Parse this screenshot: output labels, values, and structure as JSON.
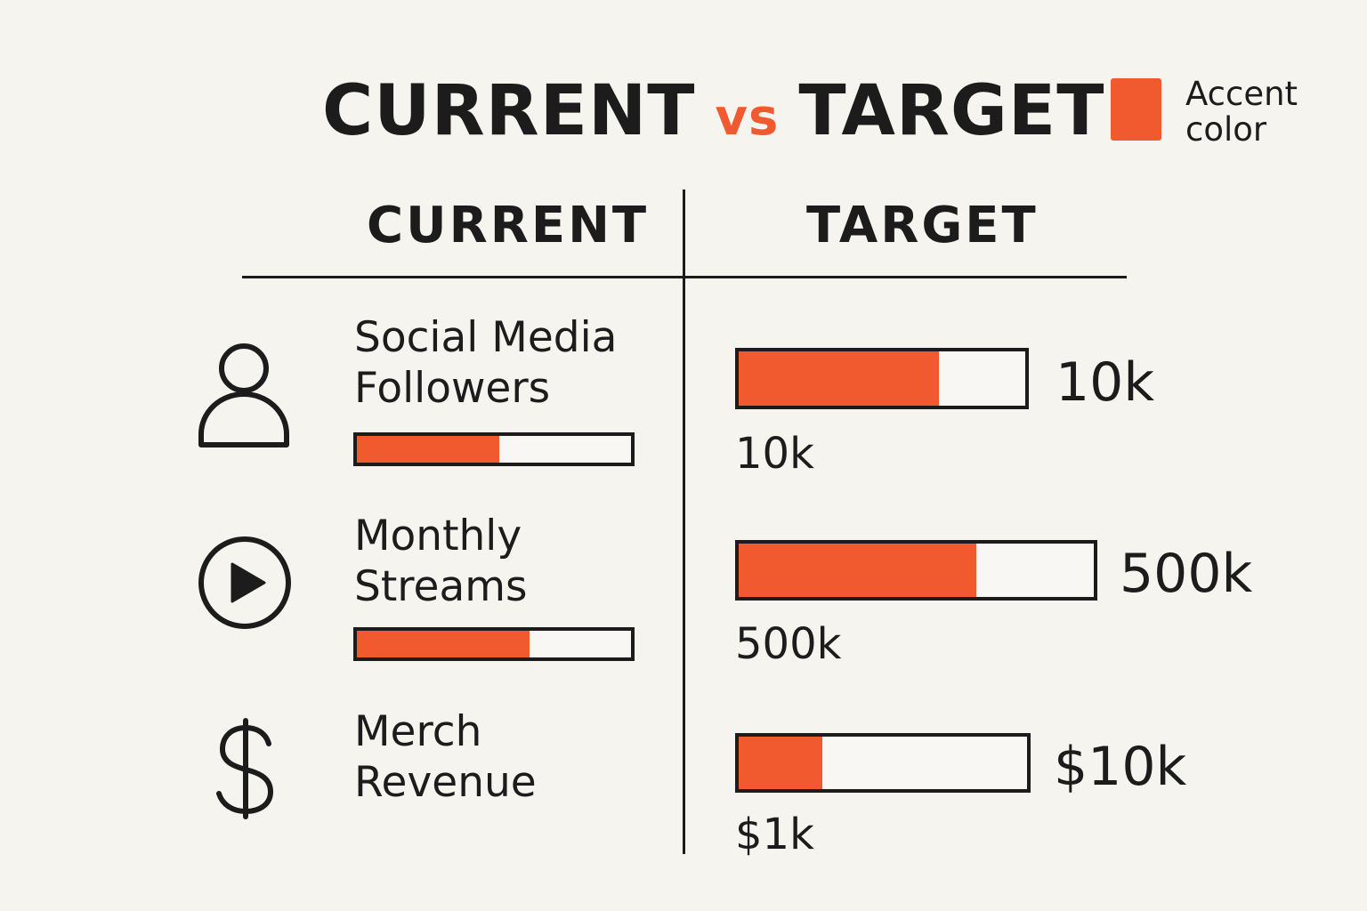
{
  "header": {
    "title_left": "CURRENT",
    "title_vs": "vs",
    "title_right": "TARGET"
  },
  "legend": {
    "text": "Accent color",
    "color": "#f1592f"
  },
  "columns": {
    "current": "CURRENT",
    "target": "TARGET"
  },
  "metrics": [
    {
      "icon": "user-icon",
      "label_line1": "Social Media",
      "label_line2": "Followers",
      "current_fill": 0.52,
      "target_fill": 0.7,
      "target_value": "10k",
      "current_value": "10k"
    },
    {
      "icon": "play-circle-icon",
      "label_line1": "Monthly",
      "label_line2": "Streams",
      "current_fill": 0.63,
      "target_fill": 0.67,
      "target_value": "500k",
      "current_value": "500k"
    },
    {
      "icon": "dollar-icon",
      "label_line1": "Merch",
      "label_line2": "Revenue",
      "current_fill": null,
      "target_fill": 0.29,
      "target_value": "$10k",
      "current_value": "$1k"
    }
  ]
}
